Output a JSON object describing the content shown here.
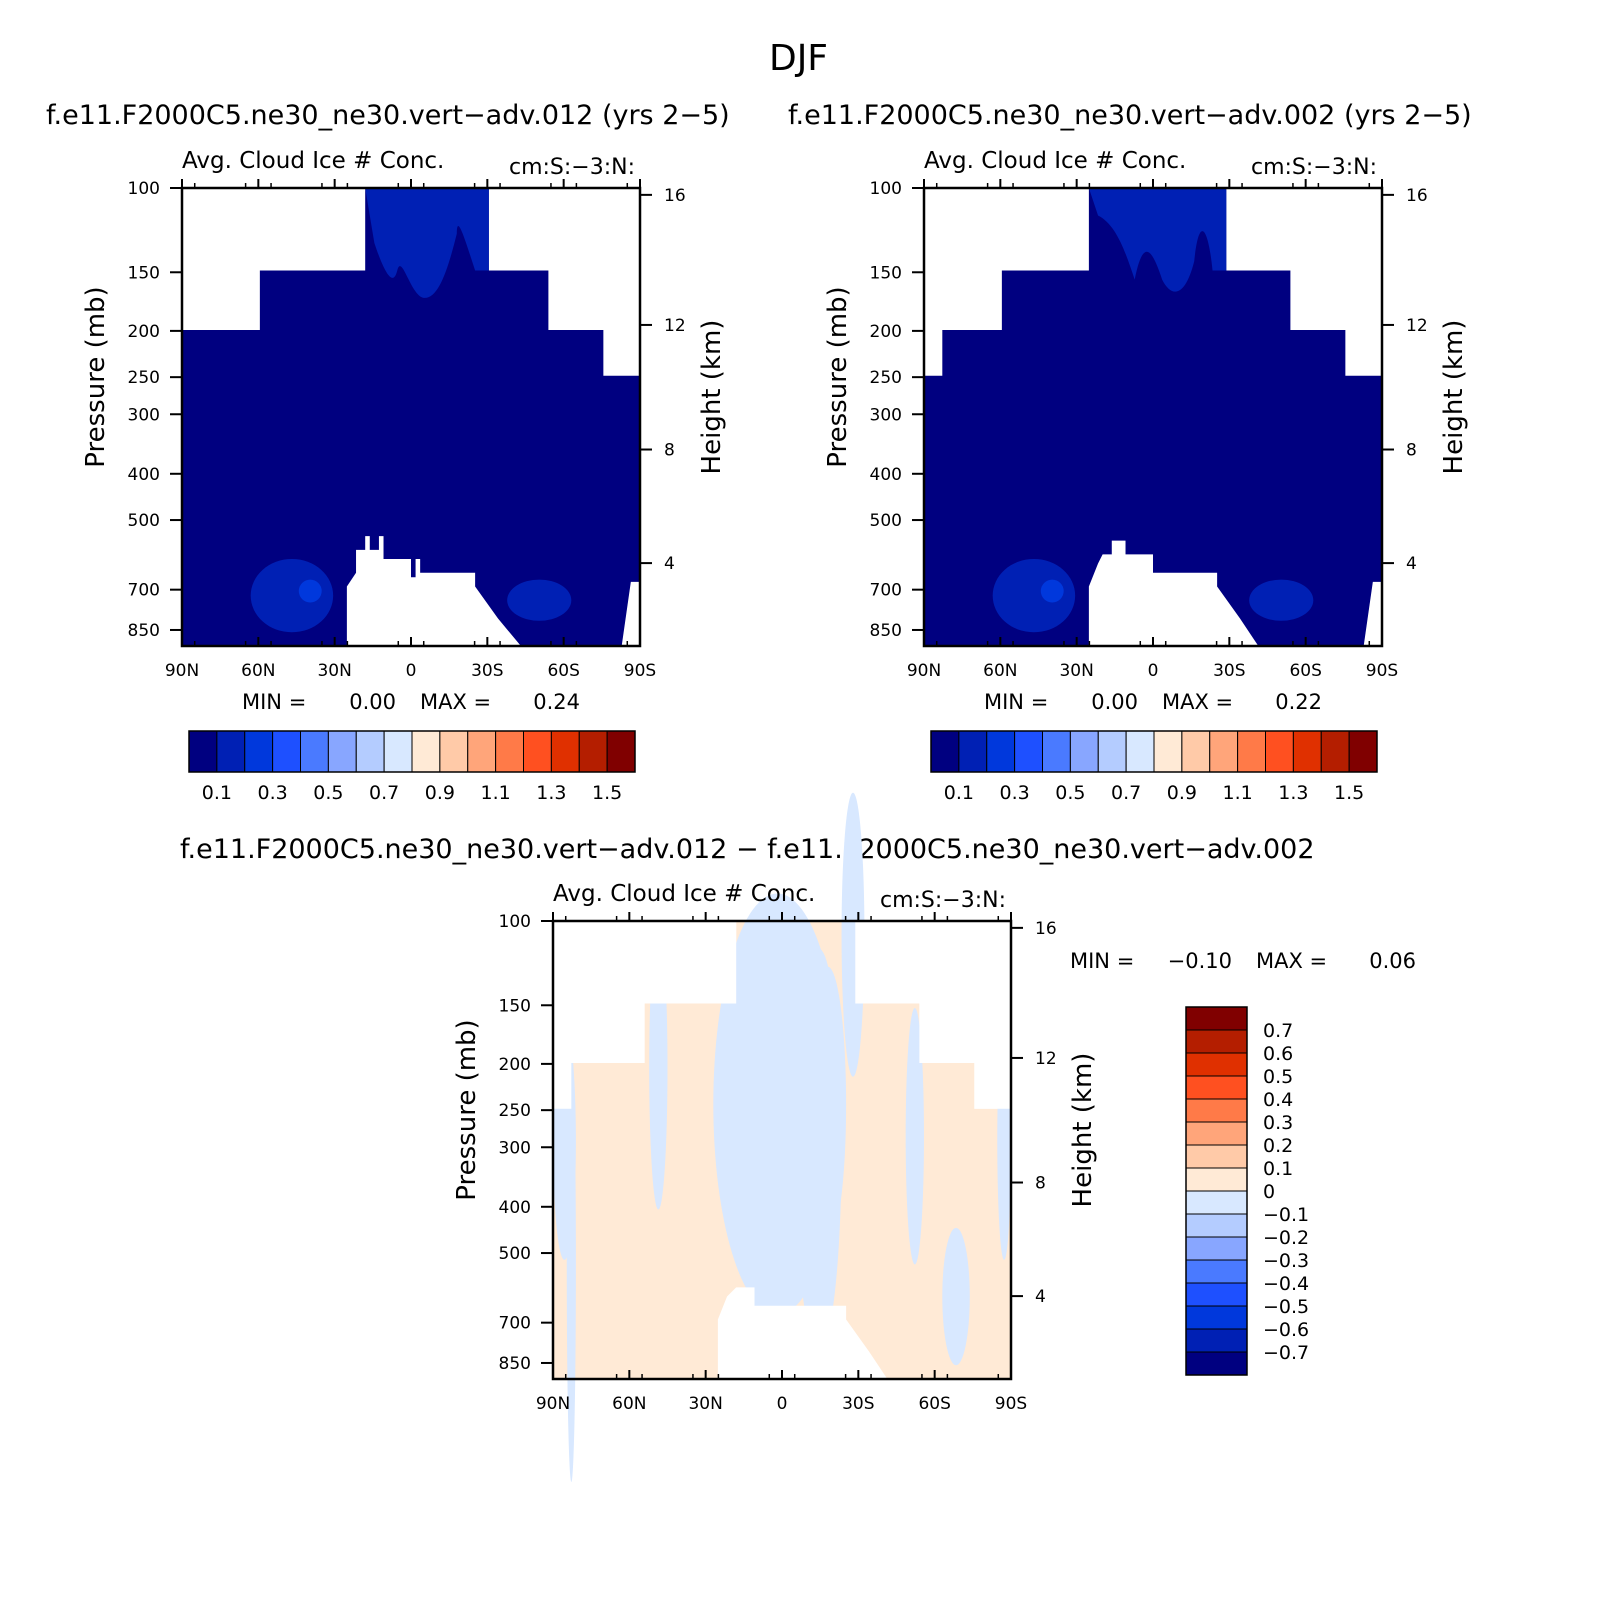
{
  "figure": {
    "title": "DJF",
    "diff_title": "f.e11.F2000C5.ne30_ne30.vert−adv.012 − f.e11.F2000C5.ne30_ne30.vert−adv.002"
  },
  "chart_data": [
    {
      "type": "heatmap",
      "title": "f.e11.F2000C5.ne30_ne30.vert−adv.012 (yrs 2−5)",
      "subtitle_left": "Avg. Cloud Ice # Conc.",
      "subtitle_right": "cm:S:−3:N:",
      "ylabel": "Pressure (mb)",
      "ylabel_right": "Height (km)",
      "x_ticks": [
        "90N",
        "60N",
        "30N",
        "0",
        "30S",
        "60S",
        "90S"
      ],
      "y_ticks": [
        "100",
        "150",
        "200",
        "250",
        "300",
        "400",
        "500",
        "700",
        "850"
      ],
      "y_ticks_right": [
        "16",
        "12",
        "8",
        "4"
      ],
      "min_label": "MIN =",
      "min_value": "0.00",
      "max_label": "MAX =",
      "max_value": "0.24",
      "colorbar_labels": [
        "0.1",
        "0.3",
        "0.5",
        "0.7",
        "0.9",
        "1.1",
        "1.3",
        "1.5"
      ],
      "colors": [
        "#000080",
        "#0020b4",
        "#0038dc",
        "#1e50ff",
        "#4a7aff",
        "#88a6ff",
        "#b4ccff",
        "#d8e8ff",
        "#ffead6",
        "#ffcaa8",
        "#ffa57a",
        "#ff7a48",
        "#ff5020",
        "#e03000",
        "#b41e00",
        "#800000"
      ]
    },
    {
      "type": "heatmap",
      "title": "f.e11.F2000C5.ne30_ne30.vert−adv.002 (yrs 2−5)",
      "subtitle_left": "Avg. Cloud Ice # Conc.",
      "subtitle_right": "cm:S:−3:N:",
      "ylabel": "Pressure (mb)",
      "ylabel_right": "Height (km)",
      "x_ticks": [
        "90N",
        "60N",
        "30N",
        "0",
        "30S",
        "60S",
        "90S"
      ],
      "y_ticks": [
        "100",
        "150",
        "200",
        "250",
        "300",
        "400",
        "500",
        "700",
        "850"
      ],
      "y_ticks_right": [
        "16",
        "12",
        "8",
        "4"
      ],
      "min_label": "MIN =",
      "min_value": "0.00",
      "max_label": "MAX =",
      "max_value": "0.22",
      "colorbar_labels": [
        "0.1",
        "0.3",
        "0.5",
        "0.7",
        "0.9",
        "1.1",
        "1.3",
        "1.5"
      ],
      "colors": [
        "#000080",
        "#0020b4",
        "#0038dc",
        "#1e50ff",
        "#4a7aff",
        "#88a6ff",
        "#b4ccff",
        "#d8e8ff",
        "#ffead6",
        "#ffcaa8",
        "#ffa57a",
        "#ff7a48",
        "#ff5020",
        "#e03000",
        "#b41e00",
        "#800000"
      ]
    },
    {
      "type": "heatmap",
      "title": "",
      "subtitle_left": "Avg. Cloud Ice # Conc.",
      "subtitle_right": "cm:S:−3:N:",
      "ylabel": "Pressure (mb)",
      "ylabel_right": "Height (km)",
      "x_ticks": [
        "90N",
        "60N",
        "30N",
        "0",
        "30S",
        "60S",
        "90S"
      ],
      "y_ticks": [
        "100",
        "150",
        "200",
        "250",
        "300",
        "400",
        "500",
        "700",
        "850"
      ],
      "y_ticks_right": [
        "16",
        "12",
        "8",
        "4"
      ],
      "min_label": "MIN =",
      "min_value": "−0.10",
      "max_label": "MAX =",
      "max_value": "0.06",
      "colorbar_labels": [
        "0.7",
        "0.6",
        "0.5",
        "0.4",
        "0.3",
        "0.2",
        "0.1",
        "0",
        "−0.1",
        "−0.2",
        "−0.3",
        "−0.4",
        "−0.5",
        "−0.6",
        "−0.7"
      ],
      "colors": [
        "#800000",
        "#b41e00",
        "#e03000",
        "#ff5020",
        "#ff7a48",
        "#ffa57a",
        "#ffcaa8",
        "#ffead6",
        "#d8e8ff",
        "#b4ccff",
        "#88a6ff",
        "#4a7aff",
        "#1e50ff",
        "#0038dc",
        "#0020b4",
        "#000080"
      ]
    }
  ]
}
